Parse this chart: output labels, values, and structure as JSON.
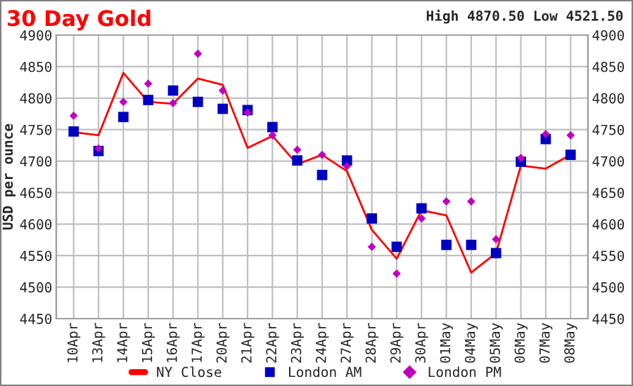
{
  "chart_data": {
    "type": "line",
    "title": "30 Day Gold",
    "annotations": [
      "High 4870.50 Low 4521.50"
    ],
    "ylabel": "USD per ounce",
    "categories": [
      "10Apr",
      "13Apr",
      "14Apr",
      "15Apr",
      "16Apr",
      "17Apr",
      "20Apr",
      "21Apr",
      "22Apr",
      "23Apr",
      "24Apr",
      "27Apr",
      "28Apr",
      "29Apr",
      "30Apr",
      "01May",
      "04May",
      "05May",
      "06May",
      "07May",
      "08May"
    ],
    "series": [
      {
        "name": "NY Close",
        "type": "line",
        "color": "#ff0000",
        "marker": "none",
        "values": [
          4746,
          4741,
          4840,
          4794,
          4791,
          4831,
          4821,
          4721,
          4740,
          4695,
          4710,
          4684,
          4591,
          4545,
          4622,
          4614,
          4523,
          4554,
          4693,
          4688,
          4710
        ]
      },
      {
        "name": "London AM",
        "type": "scatter",
        "color": "#0000c0",
        "marker": "square",
        "values": [
          4747,
          4716,
          4770,
          4797,
          4812,
          4794,
          4783,
          4781,
          4754,
          4701,
          4678,
          4701,
          4609,
          4564,
          4625,
          4567,
          4567,
          4554,
          4699,
          4735,
          4710
        ]
      },
      {
        "name": "London PM",
        "type": "scatter",
        "color": "#c000c0",
        "marker": "diamond",
        "values": [
          4772,
          4720,
          4794,
          4823,
          4792,
          4870.5,
          4812,
          4777,
          4741,
          4718,
          4710,
          4692,
          4564,
          4521.5,
          4609,
          4636,
          4636,
          4576,
          4705,
          4743,
          4741
        ]
      }
    ],
    "ylim": [
      4450,
      4900
    ],
    "yticks": [
      4450,
      4500,
      4550,
      4600,
      4650,
      4700,
      4750,
      4800,
      4850,
      4900
    ],
    "y2lim": [
      4450,
      4900
    ],
    "y2ticks": [
      4450,
      4500,
      4550,
      4600,
      4650,
      4700,
      4750,
      4800,
      4850,
      4900
    ],
    "grid": true,
    "legend": "bottom"
  }
}
